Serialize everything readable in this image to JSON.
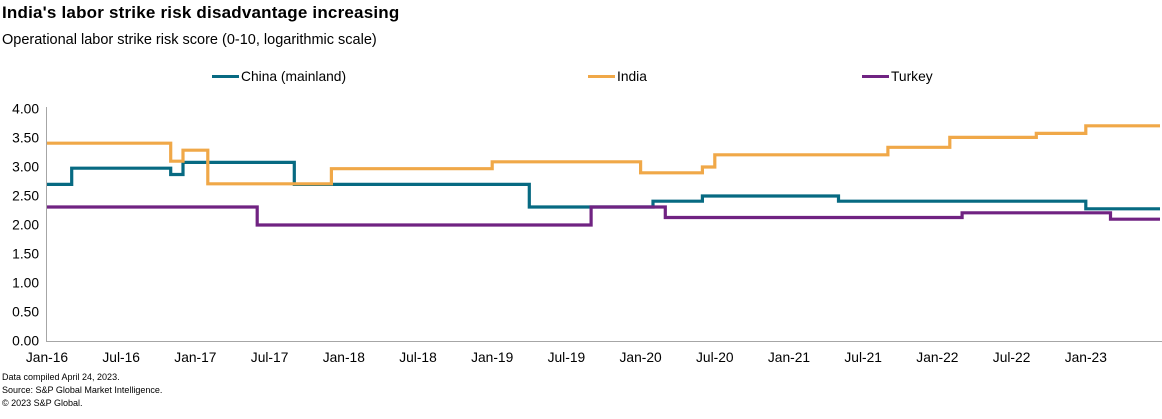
{
  "header": {
    "title": "India's labor strike risk disadvantage increasing",
    "subtitle": "Operational labor strike risk score (0-10, logarithmic scale)"
  },
  "legend": {
    "items": [
      {
        "label": "China (mainland)",
        "color": "#076A82"
      },
      {
        "label": "India",
        "color": "#F0A848"
      },
      {
        "label": "Turkey",
        "color": "#702382"
      }
    ]
  },
  "chart_data": {
    "type": "line",
    "step": "after",
    "title": "India's labor strike risk disadvantage increasing",
    "ylabel": "Operational labor strike risk score",
    "ylim": [
      0,
      4
    ],
    "grid": false,
    "legend_position": "top",
    "x_start": "2016-01",
    "x_extend_to": "2023-07",
    "y_ticks": [
      "0.00",
      "0.50",
      "1.00",
      "1.50",
      "2.00",
      "2.50",
      "3.00",
      "3.50",
      "4.00"
    ],
    "x_tick_labels": [
      "Jan-16",
      "Jul-16",
      "Jan-17",
      "Jul-17",
      "Jan-18",
      "Jul-18",
      "Jan-19",
      "Jul-19",
      "Jan-20",
      "Jul-20",
      "Jan-21",
      "Jul-21",
      "Jan-22",
      "Jul-22",
      "Jan-23"
    ],
    "series": [
      {
        "name": "China (mainland)",
        "color": "#076A82",
        "points": [
          [
            "2016-01",
            2.7
          ],
          [
            "2016-03",
            2.98
          ],
          [
            "2016-11",
            2.87
          ],
          [
            "2016-12",
            3.08
          ],
          [
            "2017-09",
            2.7
          ],
          [
            "2019-04",
            2.31
          ],
          [
            "2020-02",
            2.41
          ],
          [
            "2020-06",
            2.5
          ],
          [
            "2021-05",
            2.41
          ],
          [
            "2023-01",
            2.28
          ]
        ]
      },
      {
        "name": "India",
        "color": "#F0A848",
        "points": [
          [
            "2016-01",
            3.41
          ],
          [
            "2016-11",
            3.1
          ],
          [
            "2016-12",
            3.29
          ],
          [
            "2017-02",
            2.71
          ],
          [
            "2017-12",
            2.97
          ],
          [
            "2019-01",
            3.09
          ],
          [
            "2020-01",
            2.9
          ],
          [
            "2020-06",
            3.0
          ],
          [
            "2020-07",
            3.21
          ],
          [
            "2021-09",
            3.34
          ],
          [
            "2022-02",
            3.51
          ],
          [
            "2022-09",
            3.58
          ],
          [
            "2023-01",
            3.71
          ]
        ]
      },
      {
        "name": "Turkey",
        "color": "#702382",
        "points": [
          [
            "2016-01",
            2.31
          ],
          [
            "2017-06",
            2.0
          ],
          [
            "2019-09",
            2.31
          ],
          [
            "2020-03",
            2.13
          ],
          [
            "2022-03",
            2.21
          ],
          [
            "2023-03",
            2.1
          ]
        ]
      }
    ]
  },
  "axis_color": "#A6A6A6",
  "footer": {
    "line1": "Data compiled April 24, 2023.",
    "line2": "Source: S&P Global Market Intelligence.",
    "line3": "© 2023 S&P Global."
  }
}
